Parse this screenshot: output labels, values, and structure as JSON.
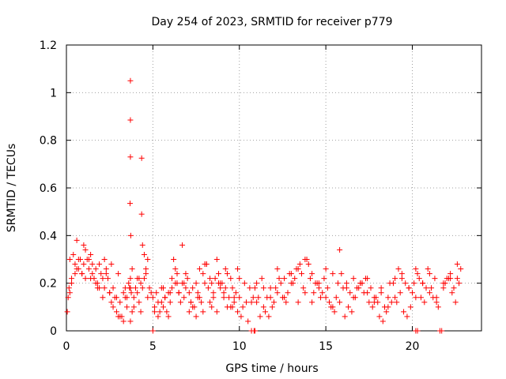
{
  "chart_data": {
    "type": "scatter",
    "title": "Day 254 of 2023, SRMTID for receiver p779",
    "xlabel": "GPS time / hours",
    "ylabel": "SRMTID / TECUs",
    "xlim": [
      0,
      24
    ],
    "ylim": [
      0,
      1.2
    ],
    "xticks": [
      0,
      5,
      10,
      15,
      20
    ],
    "yticks": [
      0,
      0.2,
      0.4,
      0.6,
      0.8,
      1,
      1.2
    ],
    "xtick_labels": [
      "0",
      "5",
      "10",
      "15",
      "20"
    ],
    "ytick_labels": [
      "0",
      "0.2",
      "0.4",
      "0.6",
      "0.8",
      "1",
      "1.2"
    ],
    "grid": true,
    "marker": "plus",
    "color": "#ff0000",
    "series": [
      {
        "name": "SRMTID",
        "x": [
          0.05,
          0.1,
          0.15,
          0.2,
          0.3,
          0.4,
          0.5,
          0.6,
          0.7,
          0.8,
          0.9,
          1.0,
          1.1,
          1.2,
          1.3,
          1.4,
          1.5,
          1.6,
          1.7,
          1.8,
          1.9,
          2.0,
          2.1,
          2.2,
          2.3,
          2.4,
          2.5,
          2.6,
          2.7,
          2.8,
          2.9,
          3.0,
          3.1,
          3.2,
          3.3,
          3.4,
          3.5,
          3.6,
          3.65,
          3.7,
          3.75,
          3.8,
          3.9,
          4.0,
          4.1,
          4.2,
          4.3,
          4.4,
          4.5,
          4.6,
          4.7,
          4.8,
          4.9,
          5.0,
          5.1,
          5.2,
          5.3,
          5.4,
          5.5,
          5.6,
          5.7,
          5.8,
          5.9,
          6.0,
          6.1,
          6.2,
          6.3,
          6.4,
          6.5,
          6.6,
          6.7,
          6.8,
          6.9,
          7.0,
          7.1,
          7.2,
          7.3,
          7.4,
          7.5,
          7.6,
          7.7,
          7.8,
          7.9,
          8.0,
          8.1,
          8.2,
          8.3,
          8.4,
          8.5,
          8.6,
          8.7,
          8.8,
          8.9,
          9.0,
          9.1,
          9.2,
          9.3,
          9.4,
          9.5,
          9.6,
          9.7,
          9.8,
          9.9,
          10.0,
          10.2,
          10.4,
          10.6,
          10.8,
          11.0,
          11.2,
          11.4,
          11.6,
          11.8,
          12.0,
          12.2,
          12.4,
          12.6,
          12.8,
          12.9,
          13.0,
          13.2,
          13.4,
          13.6,
          13.8,
          14.0,
          14.2,
          14.4,
          14.6,
          14.8,
          15.0,
          15.2,
          15.4,
          15.6,
          15.8,
          16.0,
          16.2,
          16.4,
          16.6,
          16.8,
          17.0,
          17.2,
          17.4,
          17.6,
          17.8,
          18.0,
          18.2,
          18.4,
          18.6,
          18.8,
          18.9,
          19.0,
          19.2,
          19.4,
          19.6,
          19.8,
          20.0,
          20.2,
          20.4,
          20.6,
          20.8,
          21.0,
          21.2,
          21.4,
          21.8,
          22.0,
          22.2,
          22.4,
          22.6,
          22.8,
          0.3,
          0.5,
          0.7,
          0.9,
          1.1,
          1.3,
          1.5,
          1.7,
          1.9,
          2.1,
          2.3,
          2.5,
          2.7,
          2.9,
          3.1,
          3.3,
          3.5,
          3.7,
          3.9,
          4.1,
          4.3,
          4.5,
          4.7,
          5.1,
          5.3,
          5.5,
          5.7,
          5.9,
          6.1,
          6.3,
          6.5,
          6.7,
          6.9,
          7.1,
          7.3,
          7.5,
          7.7,
          7.9,
          8.1,
          8.3,
          8.5,
          8.7,
          8.9,
          9.1,
          9.3,
          9.5,
          9.7,
          9.9,
          10.1,
          10.3,
          10.5,
          10.7,
          10.9,
          11.1,
          11.3,
          11.5,
          11.7,
          11.9,
          12.1,
          12.3,
          12.5,
          12.7,
          13.1,
          13.3,
          13.5,
          13.7,
          13.9,
          14.1,
          14.3,
          14.5,
          14.7,
          14.9,
          15.1,
          15.3,
          15.5,
          15.7,
          15.9,
          16.1,
          16.3,
          16.5,
          16.7,
          16.9,
          17.1,
          17.3,
          17.5,
          17.7,
          17.9,
          18.1,
          18.3,
          18.5,
          18.7,
          19.1,
          19.3,
          19.5,
          19.7,
          19.9,
          20.1,
          20.3,
          20.5,
          20.7,
          20.9,
          21.1,
          21.3,
          21.5,
          21.9,
          22.1,
          22.3,
          22.5,
          22.7,
          0.2,
          0.6,
          1.0,
          1.4,
          1.8,
          2.2,
          2.6,
          3.0,
          3.4,
          3.8,
          4.2,
          4.6,
          5.6,
          6.0,
          6.4,
          6.8,
          7.2,
          7.6,
          8.0,
          8.4,
          8.8,
          9.2,
          9.6,
          10.0,
          11.0,
          11.4,
          11.8,
          12.2,
          12.6,
          13.0,
          13.4,
          13.8,
          14.2,
          14.6,
          15.0,
          15.4,
          15.8,
          16.2,
          16.6,
          17.0,
          17.4,
          17.8,
          18.2,
          18.6,
          19.0,
          19.4,
          19.8,
          20.2,
          20.6,
          21.0,
          21.4,
          21.8,
          22.2,
          22.6,
          3.7,
          3.7,
          3.7,
          3.68,
          3.72,
          3.7,
          4.35,
          4.35,
          4.4,
          5.0,
          10.7,
          10.85,
          10.9,
          20.2,
          20.3,
          21.6,
          21.7
        ],
        "y": [
          0.08,
          0.14,
          0.18,
          0.16,
          0.22,
          0.32,
          0.28,
          0.38,
          0.26,
          0.3,
          0.24,
          0.28,
          0.22,
          0.3,
          0.26,
          0.32,
          0.24,
          0.22,
          0.26,
          0.2,
          0.28,
          0.24,
          0.22,
          0.18,
          0.26,
          0.22,
          0.16,
          0.12,
          0.1,
          0.14,
          0.08,
          0.06,
          0.12,
          0.06,
          0.16,
          0.18,
          0.14,
          0.2,
          0.18,
          0.22,
          0.16,
          0.26,
          0.14,
          0.18,
          0.16,
          0.12,
          0.2,
          0.18,
          0.22,
          0.24,
          0.14,
          0.18,
          0.16,
          0.14,
          0.1,
          0.16,
          0.12,
          0.08,
          0.12,
          0.1,
          0.14,
          0.08,
          0.16,
          0.12,
          0.22,
          0.3,
          0.26,
          0.2,
          0.16,
          0.12,
          0.2,
          0.14,
          0.18,
          0.22,
          0.16,
          0.12,
          0.18,
          0.1,
          0.2,
          0.16,
          0.14,
          0.12,
          0.24,
          0.2,
          0.28,
          0.18,
          0.12,
          0.2,
          0.16,
          0.22,
          0.3,
          0.24,
          0.18,
          0.2,
          0.14,
          0.18,
          0.1,
          0.14,
          0.22,
          0.18,
          0.12,
          0.16,
          0.08,
          0.14,
          0.1,
          0.12,
          0.18,
          0.14,
          0.12,
          0.06,
          0.1,
          0.14,
          0.18,
          0.12,
          0.16,
          0.2,
          0.22,
          0.16,
          0.24,
          0.2,
          0.22,
          0.26,
          0.24,
          0.3,
          0.28,
          0.24,
          0.2,
          0.18,
          0.16,
          0.14,
          0.12,
          0.1,
          0.14,
          0.12,
          0.18,
          0.2,
          0.16,
          0.14,
          0.18,
          0.2,
          0.16,
          0.22,
          0.18,
          0.14,
          0.12,
          0.16,
          0.1,
          0.14,
          0.12,
          0.2,
          0.22,
          0.26,
          0.24,
          0.2,
          0.18,
          0.16,
          0.14,
          0.22,
          0.2,
          0.18,
          0.16,
          0.14,
          0.12,
          0.2,
          0.22,
          0.24,
          0.18,
          0.22,
          0.26,
          0.2,
          0.24,
          0.3,
          0.24,
          0.34,
          0.3,
          0.28,
          0.2,
          0.18,
          0.14,
          0.24,
          0.16,
          0.18,
          0.14,
          0.06,
          0.04,
          0.1,
          0.04,
          0.1,
          0.22,
          0.08,
          0.32,
          0.3,
          0.08,
          0.06,
          0.18,
          0.14,
          0.06,
          0.18,
          0.2,
          0.16,
          0.36,
          0.24,
          0.08,
          0.1,
          0.06,
          0.26,
          0.08,
          0.28,
          0.22,
          0.14,
          0.08,
          0.2,
          0.16,
          0.24,
          0.1,
          0.14,
          0.26,
          0.06,
          0.2,
          0.04,
          0.12,
          0.18,
          0.14,
          0.22,
          0.08,
          0.06,
          0.1,
          0.18,
          0.22,
          0.14,
          0.12,
          0.2,
          0.26,
          0.28,
          0.18,
          0.3,
          0.22,
          0.16,
          0.2,
          0.14,
          0.22,
          0.18,
          0.1,
          0.08,
          0.2,
          0.24,
          0.06,
          0.1,
          0.08,
          0.14,
          0.18,
          0.2,
          0.22,
          0.12,
          0.1,
          0.14,
          0.06,
          0.04,
          0.08,
          0.2,
          0.12,
          0.16,
          0.08,
          0.06,
          0.1,
          0.2,
          0.24,
          0.14,
          0.12,
          0.26,
          0.18,
          0.22,
          0.1,
          0.2,
          0.22,
          0.16,
          0.12,
          0.2,
          0.3,
          0.26,
          0.36,
          0.22,
          0.18,
          0.3,
          0.28,
          0.24,
          0.14,
          0.08,
          0.22,
          0.26,
          0.18,
          0.16,
          0.24,
          0.2,
          0.12,
          0.14,
          0.28,
          0.1,
          0.2,
          0.26,
          0.1,
          0.22,
          0.2,
          0.18,
          0.14,
          0.26,
          0.14,
          0.24,
          0.12,
          0.16,
          0.12,
          0.2,
          0.26,
          0.24,
          0.34,
          0.18,
          0.22,
          0.2,
          0.16,
          0.12,
          0.18,
          0.1,
          0.14,
          0.22,
          0.18,
          0.26,
          0.2,
          0.24,
          0.14,
          0.18,
          0.22,
          0.28,
          1.05,
          0.885,
          0.73,
          0.535,
          0.4,
          0.18,
          0.725,
          0.49,
          0.36,
          0.0,
          0.0,
          0.0,
          0.0,
          0.0,
          0.0,
          0.0,
          0.0
        ]
      }
    ]
  }
}
